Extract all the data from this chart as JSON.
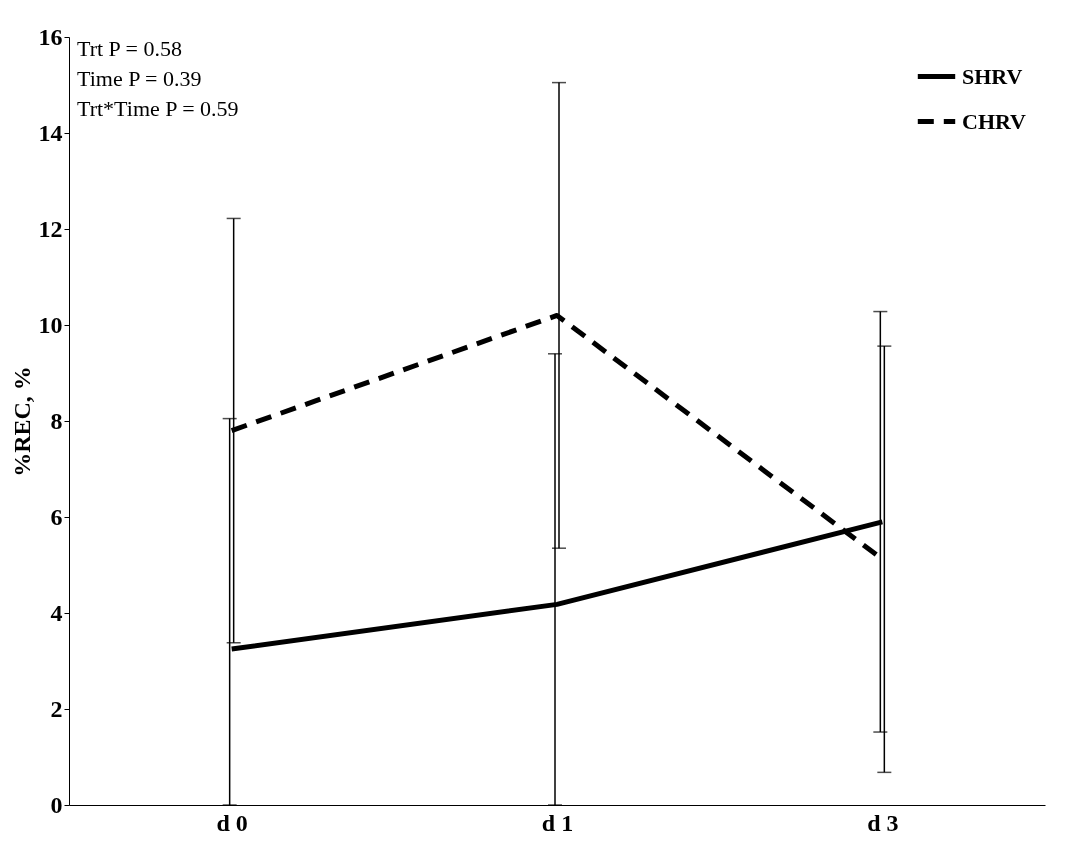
{
  "chart_data": {
    "type": "line",
    "ylabel": "%REC, %",
    "categories": [
      "d 0",
      "d 1",
      "d 3"
    ],
    "series": [
      {
        "name": "SHRV",
        "color": "#000000",
        "line_style": "solid",
        "values": [
          3.25,
          4.18,
          5.9
        ],
        "errors": [
          [
            0,
            8.05
          ],
          [
            0,
            9.4
          ],
          4.38
        ]
      },
      {
        "name": "CHRV",
        "color": "#000000",
        "line_style": "dashed",
        "values": [
          7.8,
          10.2,
          5.12
        ],
        "errors": [
          4.42,
          4.85,
          4.44
        ]
      }
    ],
    "ylim": [
      0,
      16
    ],
    "yticks": [
      0,
      2,
      4,
      6,
      8,
      10,
      12,
      14,
      16
    ],
    "grid": false,
    "legend": "top right",
    "annotations": [
      "Trt P = 0.58",
      "Time P = 0.39",
      "Trt*Time P = 0.59"
    ]
  }
}
